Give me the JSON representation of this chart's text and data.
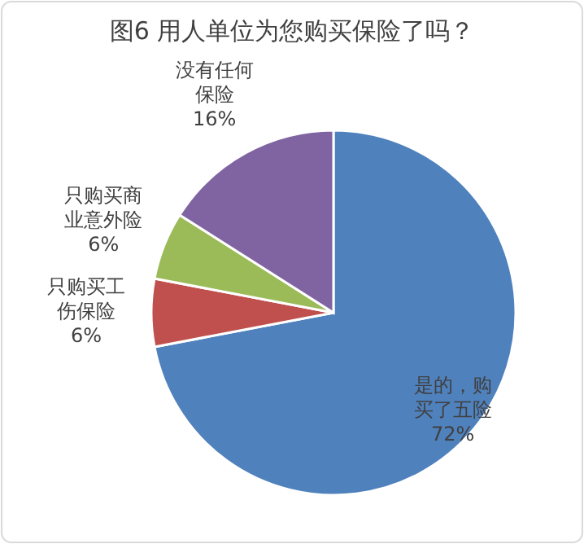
{
  "chart_data": {
    "type": "pie",
    "title": "图6 用人单位为您购买保险了吗？",
    "categories": [
      "是的，购买了五险",
      "只购买工伤保险",
      "只购买商业意外险",
      "没有任何保险"
    ],
    "values": [
      72,
      6,
      6,
      16
    ],
    "value_labels": [
      "72%",
      "6%",
      "6%",
      "16%"
    ],
    "colors": [
      "#4f81bd",
      "#c0504d",
      "#9bbb59",
      "#8064a2"
    ]
  }
}
